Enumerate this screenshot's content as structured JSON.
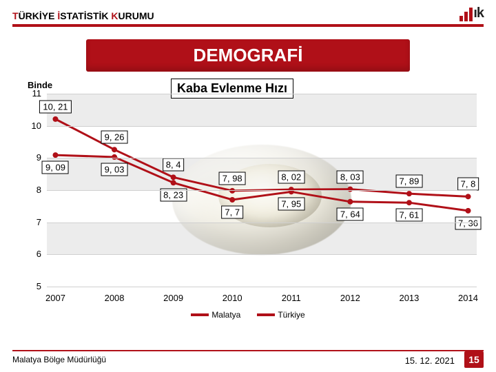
{
  "header": {
    "title_html": "TÜRKİYE İSTATİSTİK KURUMU",
    "title_red_first_chars": "T",
    "logo_text": "ık"
  },
  "banner": "DEMOGRAFİ",
  "chart": {
    "type": "line",
    "title": "Kaba Evlenme Hızı",
    "y_axis_label": "Binde",
    "y_min": 5,
    "y_max": 11,
    "y_step": 1,
    "x_labels": [
      "2007",
      "2008",
      "2009",
      "2010",
      "2011",
      "2012",
      "2013",
      "2014"
    ],
    "series": [
      {
        "name": "Malatya",
        "color": "#b01018",
        "values": [
          10.21,
          9.26,
          8.4,
          7.98,
          8.02,
          8.03,
          7.89,
          7.8
        ],
        "labels": [
          "10, 21",
          "9, 26",
          "8, 4",
          "7, 98",
          "8, 02",
          "8, 03",
          "7, 89",
          "7, 8"
        ],
        "label_dy": [
          -18,
          -18,
          -18,
          -18,
          -18,
          -18,
          -18,
          -18
        ]
      },
      {
        "name": "Türkiye",
        "color": "#b01018",
        "values": [
          9.09,
          9.03,
          8.23,
          7.7,
          7.95,
          7.64,
          7.61,
          7.36
        ],
        "labels": [
          "9, 09",
          "9, 03",
          "8, 23",
          "7, 7",
          "7, 95",
          "7, 64",
          "7, 61",
          "7, 36"
        ],
        "label_dy": [
          18,
          18,
          18,
          18,
          18,
          18,
          18,
          18
        ]
      }
    ],
    "grid_colors": [
      "#ffffff",
      "#dadada"
    ],
    "line_width": 3,
    "marker_size": 4
  },
  "legend": {
    "items": [
      "Malatya",
      "Türkiye"
    ],
    "colors": [
      "#b01018",
      "#b01018"
    ]
  },
  "footer": {
    "left": "Malatya Bölge Müdürlüğü",
    "date": "15. 12. 2021",
    "page": "15"
  }
}
